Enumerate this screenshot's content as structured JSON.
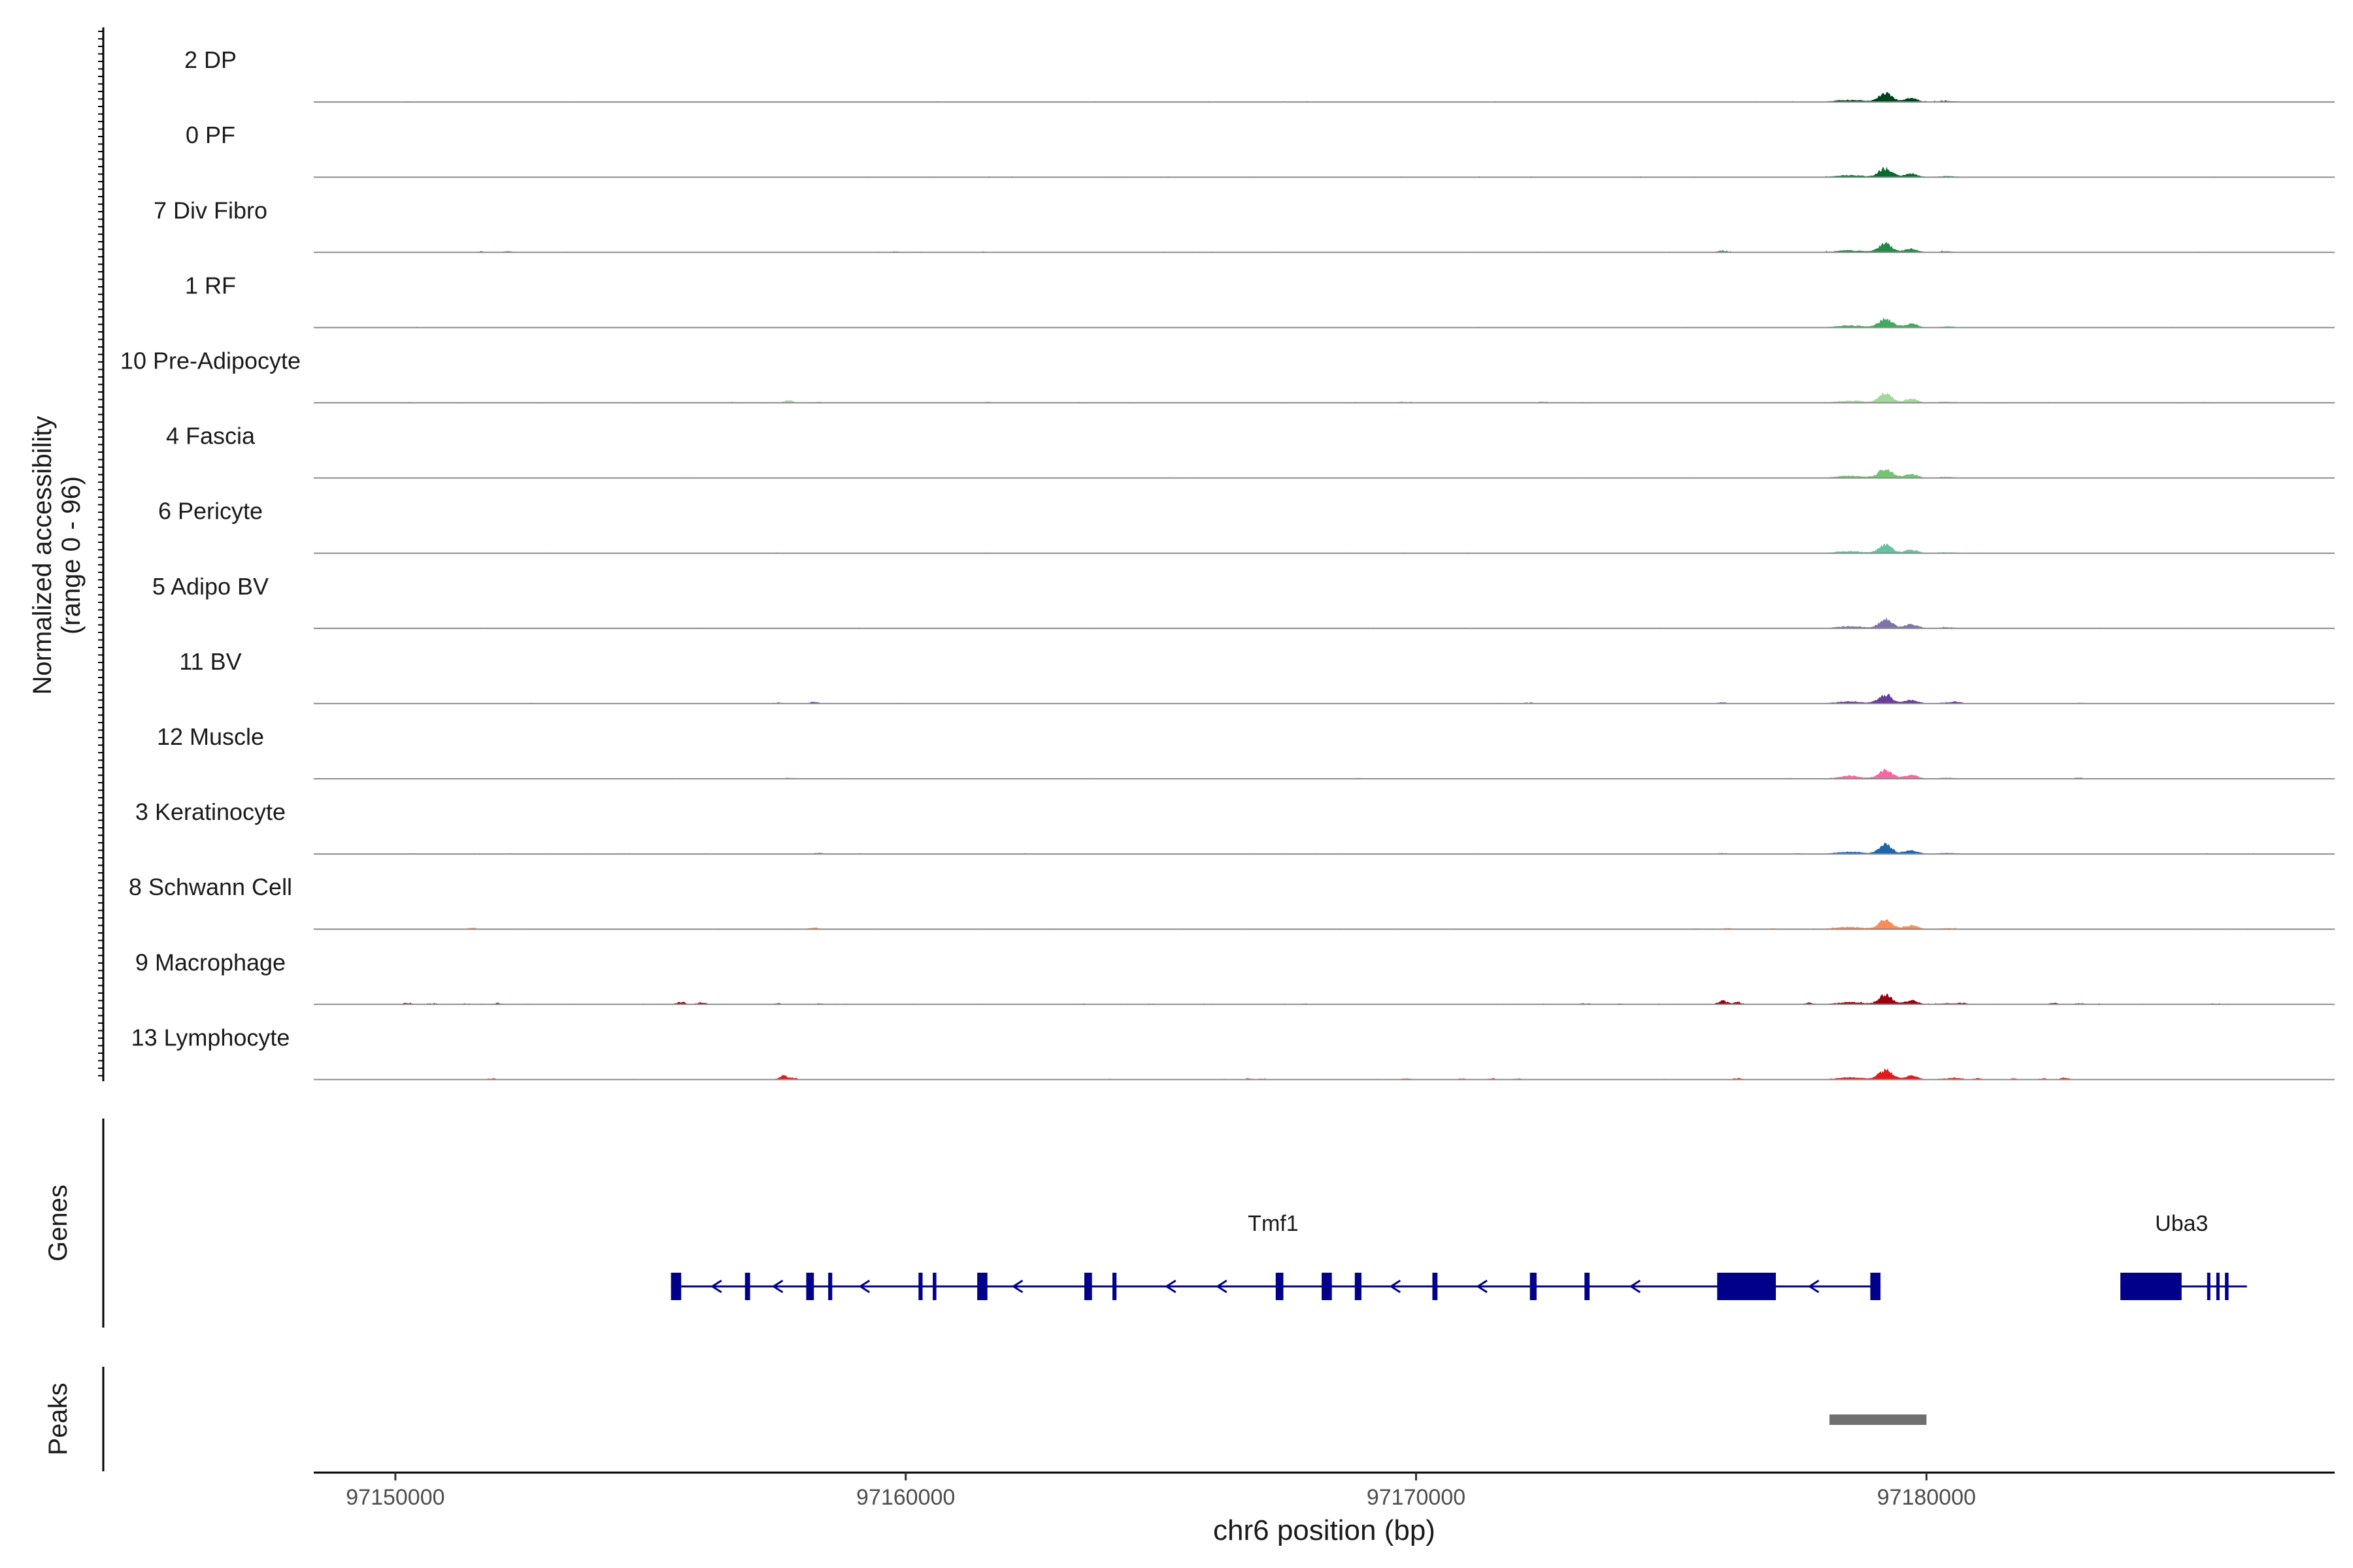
{
  "chart_data": {
    "type": "area",
    "title": "",
    "chromosome": "chr6",
    "xlabel": "chr6 position (bp)",
    "xlim": [
      97148400,
      97188000
    ],
    "x_ticks": [
      97150000,
      97160000,
      97170000,
      97180000
    ],
    "x_tick_labels": [
      "97150000",
      "97160000",
      "97170000",
      "97180000"
    ],
    "ylabel_line1": "Normalized accessibility",
    "ylabel_line2": "(range 0 - 96)",
    "ylim": [
      0,
      96
    ],
    "series": [
      {
        "name": "2 DP",
        "color": "#00441b",
        "noise": 0.01,
        "bumps": [
          [
            97150250,
            1.5
          ],
          [
            97166500,
            1.2
          ],
          [
            97168000,
            1
          ],
          [
            97174000,
            0.8
          ]
        ],
        "peak_scale": 1.0
      },
      {
        "name": "0 PF",
        "color": "#006d2c",
        "noise": 0.01,
        "bumps": [
          [
            97157500,
            0.8
          ],
          [
            97169200,
            0.8
          ]
        ],
        "peak_scale": 0.95
      },
      {
        "name": "7 Div Fibro",
        "color": "#238b45",
        "noise": 0.02,
        "bumps": [
          [
            97151700,
            2.5
          ],
          [
            97152200,
            3
          ],
          [
            97159800,
            2.5
          ],
          [
            97161500,
            2
          ],
          [
            97176000,
            5
          ]
        ],
        "peak_scale": 0.95
      },
      {
        "name": "1 RF",
        "color": "#41ab5d",
        "noise": 0.01,
        "bumps": [
          [
            97150300,
            1.2
          ]
        ],
        "peak_scale": 1.0
      },
      {
        "name": "10 Pre-Adipocyte",
        "color": "#a1d99b",
        "noise": 0.03,
        "bumps": [
          [
            97150300,
            2.5
          ],
          [
            97156600,
            2.5
          ],
          [
            97157700,
            6
          ],
          [
            97158300,
            2.5
          ],
          [
            97161600,
            2.8
          ],
          [
            97163400,
            2
          ],
          [
            97164400,
            2.2
          ],
          [
            97165500,
            1.5
          ],
          [
            97168800,
            2
          ],
          [
            97169800,
            3
          ],
          [
            97172500,
            4
          ],
          [
            97173300,
            2
          ],
          [
            97182500,
            1.5
          ],
          [
            97183500,
            1.5
          ],
          [
            97184800,
            1.5
          ],
          [
            97185500,
            2.2
          ]
        ],
        "peak_scale": 1.0
      },
      {
        "name": "4 Fascia",
        "color": "#74c476",
        "noise": 0.01,
        "bumps": [
          [
            97157500,
            0.8
          ]
        ],
        "peak_scale": 1.0
      },
      {
        "name": "6 Pericyte",
        "color": "#66c2a4",
        "noise": 0.01,
        "bumps": [
          [
            97166400,
            0.8
          ]
        ],
        "peak_scale": 0.9
      },
      {
        "name": "5 Adipo BV",
        "color": "#8073ac",
        "noise": 0.02,
        "bumps": [
          [
            97156000,
            1.5
          ],
          [
            97171000,
            1.5
          ]
        ],
        "peak_scale": 1.0
      },
      {
        "name": "11 BV",
        "color": "#6a3d9a",
        "noise": 0.01,
        "bumps": [
          [
            97157500,
            2.5
          ],
          [
            97158200,
            4.5
          ],
          [
            97172200,
            2.5
          ],
          [
            97176000,
            3
          ],
          [
            97180600,
            4
          ],
          [
            97183000,
            2.5
          ]
        ],
        "peak_scale": 1.0
      },
      {
        "name": "12 Muscle",
        "color": "#f768a1",
        "noise": 0.01,
        "bumps": [
          [
            97157700,
            3
          ],
          [
            97168900,
            2.2
          ],
          [
            97177300,
            2
          ],
          [
            97178500,
            3
          ],
          [
            97183000,
            3
          ]
        ],
        "peak_scale": 1.0
      },
      {
        "name": "3 Keratinocyte",
        "color": "#2166ac",
        "noise": 0.02,
        "bumps": [
          [
            97150300,
            1.5
          ],
          [
            97158300,
            3
          ],
          [
            97176000,
            2.5
          ],
          [
            97177500,
            2
          ]
        ],
        "peak_scale": 1.0
      },
      {
        "name": "8 Schwann Cell",
        "color": "#fc8d59",
        "noise": 0.02,
        "bumps": [
          [
            97151500,
            3.5
          ],
          [
            97158200,
            5
          ],
          [
            97175500,
            2.5
          ],
          [
            97176100,
            2.8
          ],
          [
            97177000,
            2
          ]
        ],
        "peak_scale": 1.0
      },
      {
        "name": "9 Macrophage",
        "color": "#99000d",
        "noise": 0.04,
        "bumps": [
          [
            97150250,
            4
          ],
          [
            97150700,
            2.5
          ],
          [
            97151400,
            2.5
          ],
          [
            97152000,
            3
          ],
          [
            97155600,
            6
          ],
          [
            97156000,
            5
          ],
          [
            97157500,
            3
          ],
          [
            97158300,
            2.5
          ],
          [
            97164800,
            2
          ],
          [
            97167800,
            2
          ],
          [
            97173300,
            2.5
          ],
          [
            97174000,
            2
          ],
          [
            97176000,
            10
          ],
          [
            97176300,
            6
          ],
          [
            97177700,
            4
          ],
          [
            97180700,
            3.5
          ],
          [
            97182500,
            3.5
          ],
          [
            97183000,
            3.5
          ],
          [
            97185600,
            2
          ]
        ],
        "peak_scale": 1.0
      },
      {
        "name": "13 Lymphocyte",
        "color": "#e31a1c",
        "noise": 0.01,
        "bumps": [
          [
            97151900,
            3
          ],
          [
            97157600,
            9
          ],
          [
            97157800,
            4
          ],
          [
            97166700,
            3
          ],
          [
            97167000,
            3
          ],
          [
            97169800,
            3
          ],
          [
            97170900,
            3
          ],
          [
            97171500,
            3
          ],
          [
            97172000,
            3
          ],
          [
            97176300,
            4
          ],
          [
            97180600,
            3.5
          ],
          [
            97181000,
            3.5
          ],
          [
            97181700,
            3
          ],
          [
            97182300,
            3
          ],
          [
            97182700,
            5
          ]
        ],
        "peak_scale": 1.0
      }
    ],
    "main_peak_components": [
      {
        "center": 97179200,
        "sigma": 130,
        "height": 26
      },
      {
        "center": 97179700,
        "sigma": 130,
        "height": 11
      },
      {
        "center": 97178500,
        "sigma": 280,
        "height": 6
      },
      {
        "center": 97180400,
        "sigma": 180,
        "height": 3
      }
    ],
    "genes_label": "Genes",
    "gene_color": "#00008b",
    "genes": [
      {
        "name": "Tmf1",
        "label_x": 97167200,
        "start": 97155400,
        "end": 97179100,
        "exons": [
          [
            97155400,
            97155600
          ],
          [
            97156850,
            97156950
          ],
          [
            97158050,
            97158200
          ],
          [
            97158480,
            97158560
          ],
          [
            97160250,
            97160330
          ],
          [
            97160530,
            97160600
          ],
          [
            97161400,
            97161600
          ],
          [
            97163500,
            97163650
          ],
          [
            97164050,
            97164130
          ],
          [
            97167250,
            97167400
          ],
          [
            97168150,
            97168350
          ],
          [
            97168800,
            97168930
          ],
          [
            97170320,
            97170420
          ],
          [
            97172230,
            97172360
          ],
          [
            97173300,
            97173400
          ],
          [
            97175900,
            97177050
          ],
          [
            97178900,
            97179100
          ]
        ],
        "arrows": [
          97156300,
          97157500,
          97159200,
          97162200,
          97165200,
          97166200,
          97169600,
          97171300,
          97174300,
          97177800
        ]
      },
      {
        "name": "Uba3",
        "label_x": 97185000,
        "start": 97183800,
        "end": 97186200,
        "exons": [
          [
            97183800,
            97185000
          ],
          [
            97185500,
            97185560
          ],
          [
            97185680,
            97185740
          ],
          [
            97185850,
            97185920
          ]
        ],
        "arrows": []
      }
    ],
    "peaks_label": "Peaks",
    "peaks_color": "#707070",
    "peaks": [
      [
        97178100,
        97180000
      ]
    ]
  }
}
